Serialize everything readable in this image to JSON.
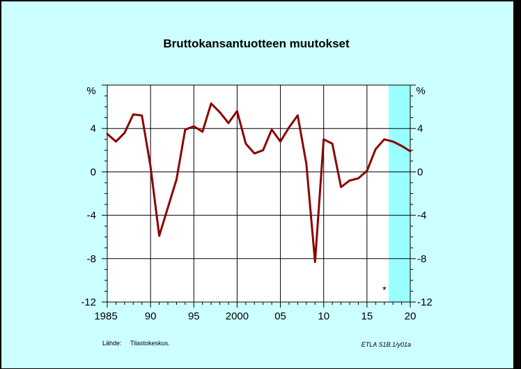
{
  "chart_data": {
    "type": "line",
    "title": "Bruttokansantuotteen muutokset",
    "unit_left": "%",
    "unit_right": "%",
    "xlim": [
      1985,
      2020
    ],
    "ylim": [
      -12,
      8
    ],
    "y_ticks": [
      4,
      0,
      -4,
      -8,
      -12
    ],
    "x_ticks": [
      {
        "value": 1985,
        "label": "1985"
      },
      {
        "value": 1990,
        "label": "90"
      },
      {
        "value": 1995,
        "label": "95"
      },
      {
        "value": 2000,
        "label": "2000"
      },
      {
        "value": 2005,
        "label": "05"
      },
      {
        "value": 2010,
        "label": "10"
      },
      {
        "value": 2015,
        "label": "15"
      },
      {
        "value": 2020,
        "label": "20"
      }
    ],
    "forecast_start": 2017.5,
    "forecast_marker": "*",
    "grid": true,
    "colors": {
      "line": "#8b0000",
      "background": "#ccffff",
      "forecast_band": "#99ffff"
    },
    "series": [
      {
        "x": [
          1985,
          1986,
          1987,
          1988,
          1989,
          1990,
          1991,
          1992,
          1993,
          1994,
          1995,
          1996,
          1997,
          1998,
          1999,
          2000,
          2001,
          2002,
          2003,
          2004,
          2005,
          2006,
          2007,
          2008,
          2009,
          2010,
          2011,
          2012,
          2013,
          2014,
          2015,
          2016,
          2017,
          2018,
          2019,
          2020
        ],
        "values": [
          3.5,
          2.8,
          3.6,
          5.3,
          5.2,
          0.5,
          -5.9,
          -3.3,
          -0.7,
          3.9,
          4.2,
          3.7,
          6.3,
          5.5,
          4.5,
          5.6,
          2.6,
          1.7,
          2.0,
          3.9,
          2.8,
          4.1,
          5.2,
          0.7,
          -8.3,
          3.0,
          2.6,
          -1.4,
          -0.8,
          -0.6,
          0.1,
          2.1,
          3.0,
          2.8,
          2.4,
          1.9
        ]
      }
    ]
  },
  "footer": {
    "source_label": "Lähde:",
    "source_value": "Tilastokeskus.",
    "code": "ETLA S1B.1/y01a"
  }
}
